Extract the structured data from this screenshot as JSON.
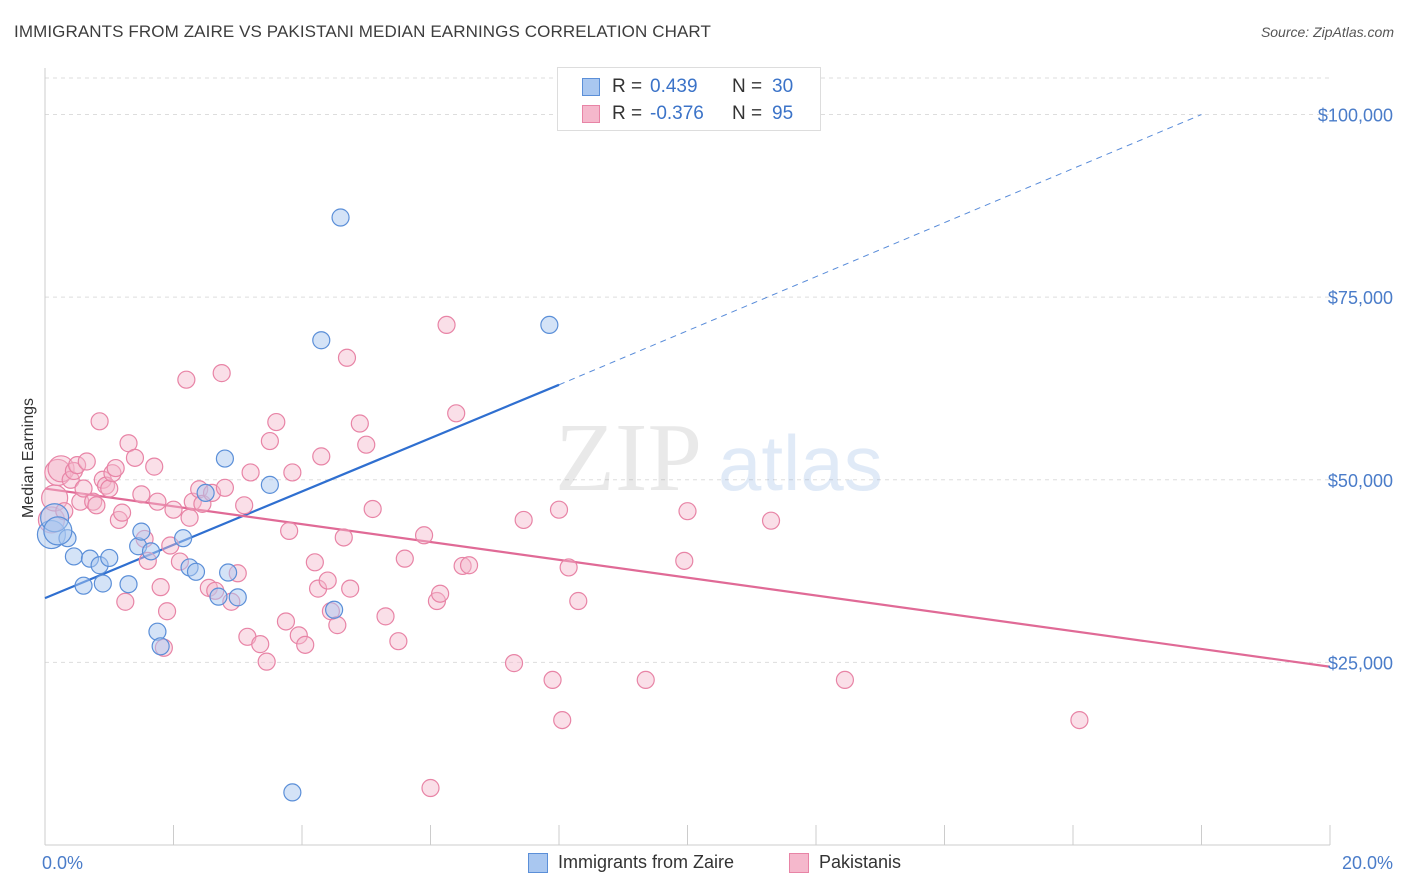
{
  "title": "IMMIGRANTS FROM ZAIRE VS PAKISTANI MEDIAN EARNINGS CORRELATION CHART",
  "source": "Source: ZipAtlas.com",
  "watermark": {
    "zip": "ZIP",
    "atlas": "atlas"
  },
  "legend_top": {
    "rows": [
      {
        "r_label": "R =",
        "r_value": "0.439",
        "n_label": "N =",
        "n_value": "30"
      },
      {
        "r_label": "R =",
        "r_value": "-0.376",
        "n_label": "N =",
        "n_value": "95"
      }
    ]
  },
  "legend_bottom": {
    "series1": "Immigrants from Zaire",
    "series2": "Pakistanis"
  },
  "colors": {
    "zaire_fill": "#a9c7f0",
    "zaire_stroke": "#5b8fd8",
    "zaire_line": "#2f6fd0",
    "pak_fill": "#f5b8cc",
    "pak_stroke": "#e884a6",
    "pak_line": "#e06a96",
    "tick_text": "#4a7cc9",
    "grid": "#dddddd"
  },
  "chart_data": {
    "type": "scatter",
    "title": "IMMIGRANTS FROM ZAIRE VS PAKISTANI MEDIAN EARNINGS CORRELATION CHART",
    "xlabel": "",
    "ylabel": "Median Earnings",
    "xlim": [
      0,
      20
    ],
    "ylim": [
      0,
      105000
    ],
    "x_tick_labels": [
      "0.0%",
      "20.0%"
    ],
    "y_ticks": [
      25000,
      50000,
      75000,
      100000
    ],
    "y_tick_labels": [
      "$25,000",
      "$50,000",
      "$75,000",
      "$100,000"
    ],
    "grid": true,
    "legend_position": "top-center",
    "series": [
      {
        "name": "Immigrants from Zaire",
        "x": [
          0.1,
          0.35,
          0.45,
          0.6,
          0.7,
          0.85,
          0.9,
          1.0,
          1.3,
          1.45,
          1.5,
          1.65,
          1.75,
          1.8,
          2.15,
          2.25,
          2.35,
          2.5,
          2.7,
          2.8,
          2.85,
          3.0,
          3.5,
          3.85,
          4.3,
          4.5,
          4.6,
          7.85,
          0.15,
          0.2
        ],
        "y": [
          42500,
          42000,
          39500,
          35500,
          39200,
          38300,
          35800,
          39300,
          35700,
          40900,
          42900,
          40200,
          29200,
          27200,
          42000,
          38000,
          37400,
          48200,
          34000,
          52900,
          37300,
          33900,
          49300,
          7200,
          69100,
          32200,
          85900,
          71200,
          44800,
          43000
        ]
      },
      {
        "name": "Pakistanis",
        "x": [
          0.1,
          0.15,
          0.2,
          0.25,
          0.3,
          0.4,
          0.45,
          0.5,
          0.55,
          0.6,
          0.65,
          0.75,
          0.8,
          0.85,
          0.9,
          0.95,
          1.0,
          1.05,
          1.1,
          1.15,
          1.2,
          1.25,
          1.3,
          1.4,
          1.5,
          1.55,
          1.6,
          1.7,
          1.75,
          1.8,
          1.85,
          1.9,
          1.95,
          2.0,
          2.1,
          2.2,
          2.25,
          2.3,
          2.4,
          2.45,
          2.55,
          2.6,
          2.65,
          2.75,
          2.8,
          2.9,
          3.0,
          3.1,
          3.15,
          3.2,
          3.35,
          3.45,
          3.5,
          3.6,
          3.75,
          3.8,
          3.85,
          3.95,
          4.05,
          4.2,
          4.25,
          4.3,
          4.4,
          4.45,
          4.55,
          4.65,
          4.7,
          4.75,
          4.9,
          5.0,
          5.1,
          5.3,
          5.5,
          5.6,
          5.9,
          6.0,
          6.1,
          6.15,
          6.25,
          6.4,
          6.5,
          6.6,
          7.3,
          7.45,
          7.9,
          8.0,
          8.05,
          8.15,
          8.3,
          9.35,
          9.95,
          10.0,
          11.3,
          12.45,
          16.1
        ],
        "y": [
          44500,
          47500,
          51000,
          51500,
          45700,
          50000,
          51200,
          52000,
          47000,
          48800,
          52500,
          47000,
          46500,
          58000,
          50000,
          49200,
          48800,
          50900,
          51600,
          44500,
          45500,
          33300,
          55000,
          53000,
          48000,
          41900,
          38900,
          51800,
          47000,
          35300,
          27000,
          32000,
          41000,
          45900,
          38800,
          63700,
          44800,
          47000,
          48700,
          46700,
          35200,
          48200,
          34800,
          64600,
          48900,
          33300,
          37200,
          46500,
          28500,
          51000,
          27500,
          25100,
          55300,
          57900,
          30600,
          43000,
          51000,
          28700,
          27400,
          38700,
          35100,
          53200,
          36200,
          32000,
          30100,
          42100,
          66700,
          35100,
          57700,
          54800,
          46000,
          31300,
          27900,
          39200,
          42400,
          7800,
          33400,
          34400,
          71200,
          59100,
          38200,
          38300,
          24900,
          44500,
          22600,
          45900,
          17100,
          38000,
          33400,
          22600,
          38900,
          45700,
          44400,
          22600,
          17100
        ],
        "trend": {
          "x": [
            0,
            20
          ],
          "y": [
            48800,
            24400
          ]
        }
      }
    ],
    "series_trends": {
      "Immigrants from Zaire": {
        "solid_x": [
          0,
          8.0
        ],
        "solid_y": [
          33800,
          63000
        ],
        "dashed_x": [
          8.0,
          18.0
        ],
        "dashed_y": [
          63000,
          100000
        ]
      }
    }
  }
}
